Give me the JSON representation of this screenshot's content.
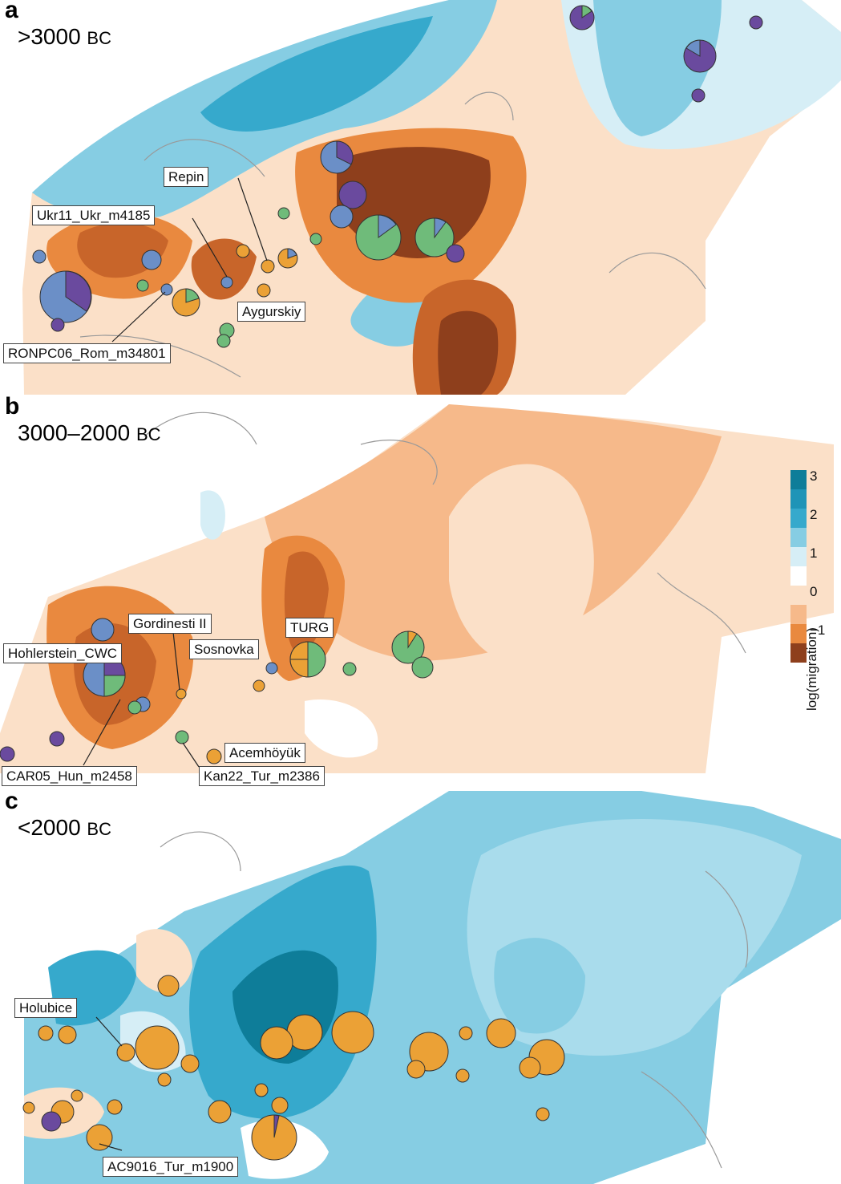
{
  "colors": {
    "dark_blue": "#0e7d99",
    "blue": "#36a9cc",
    "light_blue": "#86cde3",
    "pale_blue": "#d6eef6",
    "pale_orange": "#fbe0c8",
    "light_orange": "#f6b98a",
    "orange": "#e9893f",
    "dark_orange": "#c8652a",
    "brown": "#8e3f1c",
    "pie_blue": "#6b8fc7",
    "pie_purple": "#6a4a9e",
    "pie_green": "#6fbb7a",
    "pie_orange": "#eba136"
  },
  "panels": [
    {
      "letter": "a",
      "period": ">3000",
      "period_unit": "BC",
      "labels": [
        "Repin",
        "Ukr11_Ukr_m4185",
        "Aygurskiy",
        "RONPC06_Rom_m34801"
      ]
    },
    {
      "letter": "b",
      "period": "3000–2000",
      "period_unit": "BC",
      "labels": [
        "Gordinesti II",
        "TURG",
        "Hohlerstein_CWC",
        "Sosnovka",
        "Acemhöyük",
        "CAR05_Hun_m2458",
        "Kan22_Tur_m2386"
      ]
    },
    {
      "letter": "c",
      "period": "<2000",
      "period_unit": "BC",
      "labels": [
        "Holubice",
        "AC9016_Tur_m1900"
      ]
    }
  ],
  "legend": {
    "title": "log(migration)",
    "ticks": [
      "3",
      "2",
      "1",
      "0",
      "−1"
    ]
  }
}
